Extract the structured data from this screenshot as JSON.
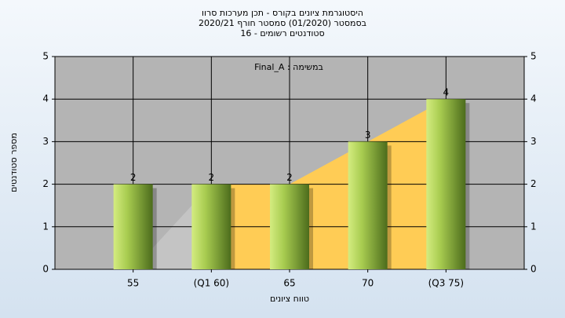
{
  "chart_data": {
    "type": "bar",
    "title": "היסטוגרמת ציונים בקורס - תכן מערכות סרוו",
    "subtitle": "בסמסטר  (01/2020)  סמסטר חורף 2020/21",
    "subtitle2": "סטודנטים רשומים - 16",
    "annotation": "במשימה : Final_A",
    "x_label": "טווח ציונים",
    "y_label": "מספר סטודנטים",
    "categories": [
      "55",
      "(Q1 60)",
      "65",
      "70",
      "(Q3 75)"
    ],
    "values": [
      2,
      2,
      2,
      3,
      4
    ],
    "color": "#8fb83a",
    "area": {
      "values": [
        0,
        2,
        2,
        3,
        4
      ],
      "colors": [
        "#c4c4c4",
        "#ffcc55"
      ]
    },
    "ylim": [
      0,
      5
    ],
    "yticks": [
      0,
      1,
      2,
      3,
      4,
      5
    ],
    "y2lim": [
      0,
      5
    ],
    "y2ticks": [
      0,
      1,
      2,
      3,
      4,
      5
    ],
    "grid": true
  }
}
